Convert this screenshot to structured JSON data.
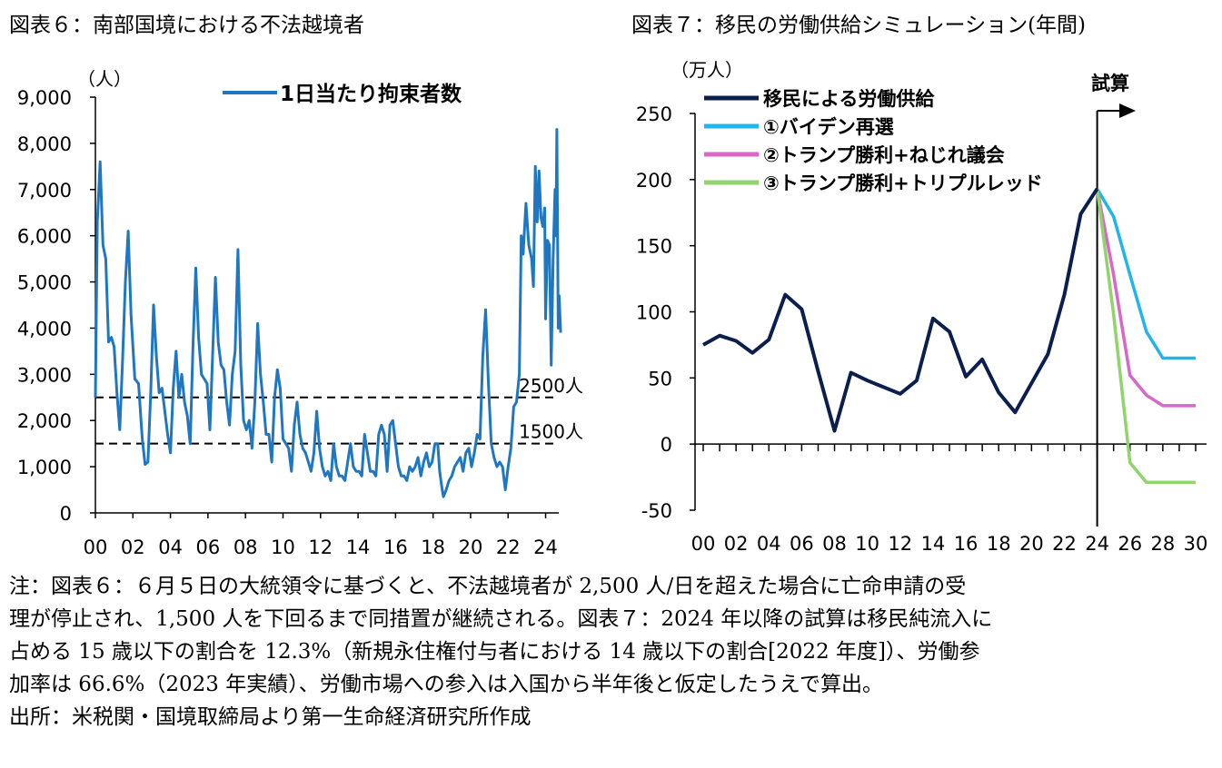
{
  "titles": {
    "fig6": "図表６：南部国境における不法越境者",
    "fig7": "図表７：移民の労働供給シミュレーション(年間)"
  },
  "notes": {
    "line1": "注：図表６：６月５日の大統領令に基づくと、不法越境者が 2,500 人/日を超えた場合に亡命申請の受",
    "line2": "理が停止され、1,500 人を下回るまで同措置が継続される。図表７：2024 年以降の試算は移民純流入に",
    "line3": "占める 15 歳以下の割合を 12.3%（新規永住権付与者における 14 歳以下の割合[2022 年度]）、労働参",
    "line4": "加率は 66.6%（2023 年実績）、労働市場への参入は入国から半年後と仮定したうえで算出。",
    "source": "出所：米税関・国境取締局より第一生命経済研究所作成"
  },
  "chart_data": [
    {
      "type": "line",
      "title": "図表６：南部国境における不法越境者",
      "ylabel": "（人）",
      "ylim": [
        0,
        9000
      ],
      "yticks": [
        0,
        1000,
        2000,
        3000,
        4000,
        5000,
        6000,
        7000,
        8000,
        9000
      ],
      "ytick_labels": [
        "0",
        "1,000",
        "2,000",
        "3,000",
        "4,000",
        "5,000",
        "6,000",
        "7,000",
        "8,000",
        "9,000"
      ],
      "xlim": [
        2000,
        2024.7
      ],
      "xtick_labels": [
        "00",
        "02",
        "04",
        "06",
        "08",
        "10",
        "12",
        "14",
        "16",
        "18",
        "20",
        "22",
        "24"
      ],
      "xtick_values": [
        2000,
        2002,
        2004,
        2006,
        2008,
        2010,
        2012,
        2014,
        2016,
        2018,
        2020,
        2022,
        2024
      ],
      "series": [
        {
          "name": "1日当たり拘束者数",
          "color": "#1f77c2",
          "points": [
            [
              2000.0,
              2500
            ],
            [
              2000.1,
              6300
            ],
            [
              2000.25,
              7600
            ],
            [
              2000.4,
              5800
            ],
            [
              2000.55,
              5500
            ],
            [
              2000.7,
              3700
            ],
            [
              2000.85,
              3800
            ],
            [
              2001.0,
              3600
            ],
            [
              2001.15,
              2600
            ],
            [
              2001.3,
              1800
            ],
            [
              2001.45,
              3300
            ],
            [
              2001.6,
              5000
            ],
            [
              2001.75,
              6100
            ],
            [
              2001.9,
              4300
            ],
            [
              2002.1,
              2900
            ],
            [
              2002.3,
              2800
            ],
            [
              2002.5,
              1600
            ],
            [
              2002.65,
              1050
            ],
            [
              2002.8,
              1100
            ],
            [
              2002.95,
              2600
            ],
            [
              2003.1,
              4500
            ],
            [
              2003.25,
              3400
            ],
            [
              2003.4,
              2600
            ],
            [
              2003.55,
              2700
            ],
            [
              2003.7,
              2200
            ],
            [
              2003.85,
              1700
            ],
            [
              2004.0,
              1300
            ],
            [
              2004.15,
              2700
            ],
            [
              2004.3,
              3500
            ],
            [
              2004.45,
              2500
            ],
            [
              2004.6,
              3000
            ],
            [
              2004.75,
              2400
            ],
            [
              2004.9,
              2100
            ],
            [
              2005.05,
              1500
            ],
            [
              2005.2,
              3600
            ],
            [
              2005.35,
              5300
            ],
            [
              2005.5,
              3800
            ],
            [
              2005.65,
              3000
            ],
            [
              2005.8,
              2900
            ],
            [
              2005.95,
              2800
            ],
            [
              2006.1,
              1800
            ],
            [
              2006.25,
              3400
            ],
            [
              2006.4,
              5100
            ],
            [
              2006.55,
              3700
            ],
            [
              2006.7,
              3200
            ],
            [
              2006.85,
              3100
            ],
            [
              2007.0,
              2400
            ],
            [
              2007.15,
              1900
            ],
            [
              2007.3,
              3000
            ],
            [
              2007.45,
              3500
            ],
            [
              2007.6,
              5700
            ],
            [
              2007.75,
              3200
            ],
            [
              2007.9,
              2000
            ],
            [
              2008.05,
              1800
            ],
            [
              2008.2,
              2000
            ],
            [
              2008.35,
              1400
            ],
            [
              2008.5,
              2400
            ],
            [
              2008.65,
              4100
            ],
            [
              2008.8,
              3000
            ],
            [
              2008.95,
              2400
            ],
            [
              2009.1,
              1700
            ],
            [
              2009.25,
              1700
            ],
            [
              2009.4,
              1100
            ],
            [
              2009.55,
              2500
            ],
            [
              2009.7,
              3100
            ],
            [
              2009.85,
              2700
            ],
            [
              2010.0,
              1600
            ],
            [
              2010.15,
              1500
            ],
            [
              2010.3,
              1400
            ],
            [
              2010.45,
              900
            ],
            [
              2010.6,
              1900
            ],
            [
              2010.75,
              2400
            ],
            [
              2010.9,
              1700
            ],
            [
              2011.05,
              1400
            ],
            [
              2011.2,
              1300
            ],
            [
              2011.35,
              1100
            ],
            [
              2011.5,
              900
            ],
            [
              2011.65,
              1300
            ],
            [
              2011.8,
              2200
            ],
            [
              2011.95,
              1400
            ],
            [
              2012.1,
              1000
            ],
            [
              2012.25,
              800
            ],
            [
              2012.4,
              900
            ],
            [
              2012.55,
              700
            ],
            [
              2012.7,
              1500
            ],
            [
              2012.85,
              1000
            ],
            [
              2013.0,
              800
            ],
            [
              2013.15,
              800
            ],
            [
              2013.3,
              700
            ],
            [
              2013.45,
              1100
            ],
            [
              2013.6,
              1500
            ],
            [
              2013.75,
              1000
            ],
            [
              2013.9,
              900
            ],
            [
              2014.05,
              900
            ],
            [
              2014.2,
              800
            ],
            [
              2014.35,
              1700
            ],
            [
              2014.5,
              1300
            ],
            [
              2014.65,
              900
            ],
            [
              2014.8,
              900
            ],
            [
              2014.95,
              800
            ],
            [
              2015.1,
              1700
            ],
            [
              2015.25,
              1900
            ],
            [
              2015.4,
              1700
            ],
            [
              2015.55,
              900
            ],
            [
              2015.7,
              1900
            ],
            [
              2015.85,
              2000
            ],
            [
              2016.0,
              1500
            ],
            [
              2016.15,
              1000
            ],
            [
              2016.3,
              800
            ],
            [
              2016.45,
              800
            ],
            [
              2016.6,
              700
            ],
            [
              2016.75,
              1000
            ],
            [
              2016.9,
              900
            ],
            [
              2017.05,
              1000
            ],
            [
              2017.2,
              1200
            ],
            [
              2017.35,
              800
            ],
            [
              2017.5,
              1100
            ],
            [
              2017.65,
              1300
            ],
            [
              2017.8,
              1000
            ],
            [
              2017.95,
              1100
            ],
            [
              2018.1,
              1500
            ],
            [
              2018.25,
              1500
            ],
            [
              2018.35,
              900
            ],
            [
              2018.45,
              600
            ],
            [
              2018.55,
              350
            ],
            [
              2018.7,
              500
            ],
            [
              2018.85,
              700
            ],
            [
              2019.0,
              800
            ],
            [
              2019.15,
              1000
            ],
            [
              2019.3,
              1100
            ],
            [
              2019.45,
              1200
            ],
            [
              2019.6,
              900
            ],
            [
              2019.75,
              1300
            ],
            [
              2019.9,
              1400
            ],
            [
              2020.05,
              1000
            ],
            [
              2020.2,
              1300
            ],
            [
              2020.35,
              1700
            ],
            [
              2020.5,
              1600
            ],
            [
              2020.65,
              3400
            ],
            [
              2020.8,
              4400
            ],
            [
              2020.95,
              2800
            ],
            [
              2021.1,
              1500
            ],
            [
              2021.25,
              1200
            ],
            [
              2021.4,
              1000
            ],
            [
              2021.55,
              1100
            ],
            [
              2021.7,
              1000
            ],
            [
              2021.85,
              500
            ],
            [
              2022.0,
              1000
            ],
            [
              2022.15,
              1400
            ],
            [
              2022.3,
              2300
            ],
            [
              2022.45,
              2400
            ],
            [
              2022.6,
              3000
            ],
            [
              2022.7,
              6000
            ],
            [
              2022.8,
              5600
            ],
            [
              2022.95,
              6700
            ],
            [
              2023.1,
              5800
            ],
            [
              2023.25,
              5500
            ],
            [
              2023.35,
              4900
            ],
            [
              2023.45,
              7500
            ],
            [
              2023.55,
              6300
            ],
            [
              2023.65,
              7400
            ],
            [
              2023.75,
              6400
            ],
            [
              2023.85,
              6200
            ],
            [
              2023.95,
              6600
            ],
            [
              2024.0,
              4200
            ],
            [
              2024.1,
              5900
            ],
            [
              2024.2,
              5800
            ],
            [
              2024.3,
              3200
            ],
            [
              2024.4,
              5500
            ],
            [
              2024.5,
              7000
            ],
            [
              2024.55,
              6000
            ],
            [
              2024.6,
              8300
            ],
            [
              2024.67,
              4000
            ],
            [
              2024.72,
              4700
            ],
            [
              2024.8,
              3900
            ]
          ]
        }
      ],
      "reference_lines": [
        {
          "value": 2500,
          "label": "2500人"
        },
        {
          "value": 1500,
          "label": "1500人"
        }
      ]
    },
    {
      "type": "line",
      "title": "図表７：移民の労働供給シミュレーション(年間)",
      "ylabel": "（万人）",
      "ylim": [
        -50,
        250
      ],
      "yticks": [
        -50,
        0,
        50,
        100,
        150,
        200,
        250
      ],
      "ytick_labels": [
        "-50",
        "0",
        "50",
        "100",
        "150",
        "200",
        "250"
      ],
      "xtick_labels": [
        "00",
        "02",
        "04",
        "06",
        "08",
        "10",
        "12",
        "14",
        "16",
        "18",
        "20",
        "22",
        "24",
        "26",
        "28",
        "30"
      ],
      "xtick_values": [
        2000,
        2002,
        2004,
        2006,
        2008,
        2010,
        2012,
        2014,
        2016,
        2018,
        2020,
        2022,
        2024,
        2026,
        2028,
        2030
      ],
      "xlim": [
        2000,
        2030
      ],
      "annotation": {
        "label": "試算",
        "x": 2024
      },
      "series": [
        {
          "name": "移民による労働供給",
          "color": "#0b1f4f",
          "x": [
            2000,
            2001,
            2002,
            2003,
            2004,
            2005,
            2006,
            2007,
            2008,
            2009,
            2010,
            2011,
            2012,
            2013,
            2014,
            2015,
            2016,
            2017,
            2018,
            2019,
            2020,
            2021,
            2022,
            2023,
            2024
          ],
          "values": [
            75,
            82,
            78,
            69,
            79,
            113,
            102,
            55,
            10,
            54,
            48,
            43,
            38,
            48,
            95,
            85,
            51,
            64,
            39,
            24,
            46,
            68,
            113,
            174,
            193
          ]
        },
        {
          "name": "①バイデン再選",
          "color": "#22b4ea",
          "x": [
            2024,
            2025,
            2026,
            2027,
            2028,
            2029,
            2030
          ],
          "values": [
            193,
            172,
            128,
            85,
            65,
            65,
            65
          ]
        },
        {
          "name": "②トランプ勝利+ねじれ議会",
          "color": "#d768c8",
          "x": [
            2024,
            2025,
            2026,
            2027,
            2028,
            2029,
            2030
          ],
          "values": [
            193,
            128,
            52,
            37,
            29,
            29,
            29
          ]
        },
        {
          "name": "③トランプ勝利+トリプルレッド",
          "color": "#92d36e",
          "x": [
            2024,
            2025,
            2026,
            2027,
            2028,
            2029,
            2030
          ],
          "values": [
            193,
            98,
            -14,
            -29,
            -29,
            -29,
            -29
          ]
        }
      ]
    }
  ]
}
